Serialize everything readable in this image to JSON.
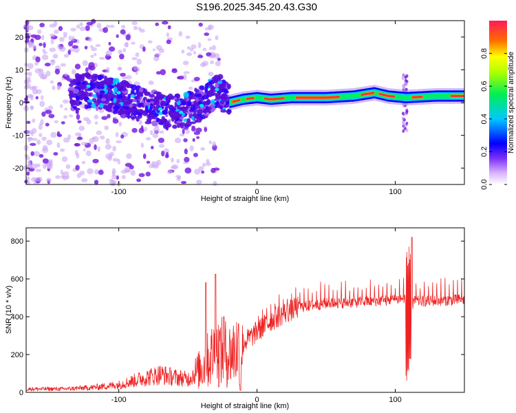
{
  "title": "S196.2025.345.20.43.G30",
  "colors": {
    "snr_line": "#ee2222",
    "spec_high": "#ff3333",
    "spec_mid": "#00ee66",
    "spec_low": "#0000ff",
    "spec_faint": "#8a2be2"
  },
  "chart_data": [
    {
      "type": "heatmap",
      "name": "spectrogram",
      "xlabel": "Height of straight line (km)",
      "ylabel": "Frequency (Hz)",
      "xlim": [
        -167,
        150
      ],
      "ylim": [
        -25,
        25
      ],
      "xticks": [
        -100,
        0,
        100
      ],
      "yticks": [
        -20,
        -10,
        0,
        10,
        20
      ],
      "colorbar": {
        "label": "Normalized spectral amplitude",
        "range": [
          0,
          1
        ],
        "ticks": [
          "0.0",
          "0.2",
          "0.4",
          "0.6",
          "0.8"
        ]
      },
      "ridge": [
        {
          "x": -130,
          "y": 4
        },
        {
          "x": -110,
          "y": 3
        },
        {
          "x": -95,
          "y": 1
        },
        {
          "x": -80,
          "y": -1
        },
        {
          "x": -65,
          "y": -3
        },
        {
          "x": -50,
          "y": -2
        },
        {
          "x": -38,
          "y": 0
        },
        {
          "x": -28,
          "y": 4
        },
        {
          "x": -20,
          "y": 0
        },
        {
          "x": -10,
          "y": 1
        },
        {
          "x": 0,
          "y": 1.5
        },
        {
          "x": 10,
          "y": 1
        },
        {
          "x": 25,
          "y": 1.5
        },
        {
          "x": 50,
          "y": 1.5
        },
        {
          "x": 70,
          "y": 2
        },
        {
          "x": 85,
          "y": 3
        },
        {
          "x": 95,
          "y": 2
        },
        {
          "x": 108,
          "y": 1.5
        },
        {
          "x": 130,
          "y": 2
        },
        {
          "x": 150,
          "y": 2
        }
      ]
    },
    {
      "type": "line",
      "name": "snr",
      "xlabel": "Height of straight line (km)",
      "ylabel": "SNR (10 * v/v)",
      "xlim": [
        -167,
        150
      ],
      "ylim": [
        0,
        870
      ],
      "xticks": [
        -100,
        0,
        100
      ],
      "yticks": [
        0,
        200,
        400,
        600,
        800
      ],
      "envelope": [
        {
          "x": -167,
          "y": 18
        },
        {
          "x": -140,
          "y": 18
        },
        {
          "x": -120,
          "y": 25
        },
        {
          "x": -100,
          "y": 40
        },
        {
          "x": -85,
          "y": 70
        },
        {
          "x": -70,
          "y": 95
        },
        {
          "x": -60,
          "y": 80
        },
        {
          "x": -50,
          "y": 70
        },
        {
          "x": -40,
          "y": 130
        },
        {
          "x": -30,
          "y": 220
        },
        {
          "x": -20,
          "y": 200
        },
        {
          "x": -10,
          "y": 260
        },
        {
          "x": 0,
          "y": 320
        },
        {
          "x": 10,
          "y": 380
        },
        {
          "x": 20,
          "y": 420
        },
        {
          "x": 30,
          "y": 450
        },
        {
          "x": 50,
          "y": 470
        },
        {
          "x": 80,
          "y": 480
        },
        {
          "x": 100,
          "y": 490
        },
        {
          "x": 107,
          "y": 500
        },
        {
          "x": 110,
          "y": 300
        },
        {
          "x": 113,
          "y": 480
        },
        {
          "x": 130,
          "y": 485
        },
        {
          "x": 150,
          "y": 490
        }
      ],
      "peaks": [
        {
          "x": -37,
          "y": 580
        },
        {
          "x": -30,
          "y": 625
        },
        {
          "x": -24,
          "y": 400
        },
        {
          "x": 108,
          "y": 860
        },
        {
          "x": 112,
          "y": 820
        }
      ],
      "troughs": [
        {
          "x": -12,
          "y": 10
        },
        {
          "x": 109,
          "y": 55
        }
      ]
    }
  ]
}
